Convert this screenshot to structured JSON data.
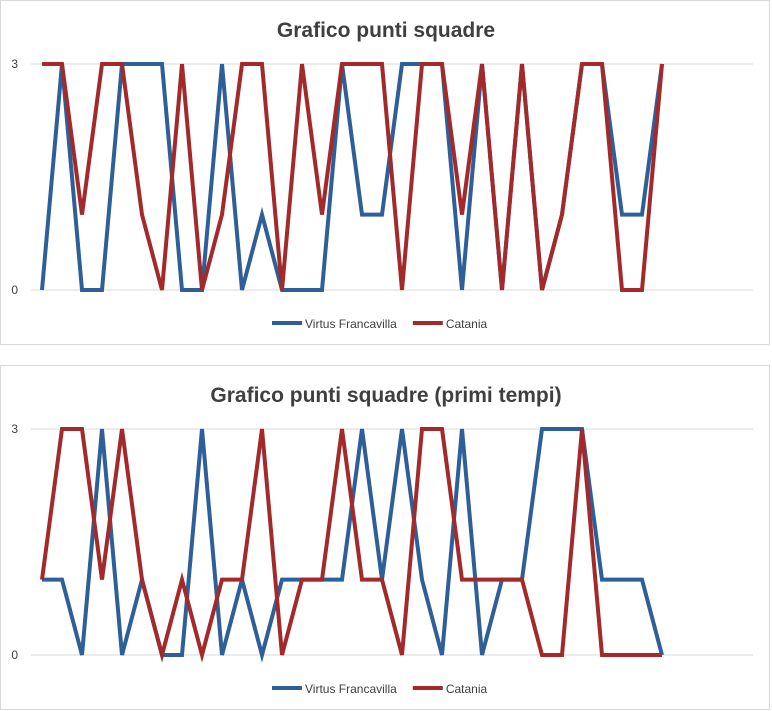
{
  "chart_data": [
    {
      "type": "line",
      "title": "Grafico punti squadre",
      "xlabel": "",
      "ylabel": "",
      "ylim": [
        0,
        3
      ],
      "y_ticks": [
        "0",
        "3"
      ],
      "grid": true,
      "legend_position": "bottom",
      "x": [
        1,
        2,
        3,
        4,
        5,
        6,
        7,
        8,
        9,
        10,
        11,
        12,
        13,
        14,
        15,
        16,
        17,
        18,
        19,
        20,
        21,
        22,
        23,
        24,
        25,
        26,
        27,
        28,
        29,
        30,
        31,
        32
      ],
      "series": [
        {
          "name": "Virtus Francavilla",
          "color": "#2e5f98",
          "values": [
            0,
            3,
            0,
            0,
            3,
            3,
            3,
            0,
            0,
            3,
            0,
            1,
            0,
            0,
            0,
            3,
            1,
            1,
            3,
            3,
            3,
            0,
            3,
            0,
            3,
            0,
            1,
            3,
            3,
            1,
            1,
            3
          ]
        },
        {
          "name": "Catania",
          "color": "#a32a2a",
          "values": [
            3,
            3,
            1,
            3,
            3,
            1,
            0,
            3,
            0,
            1,
            3,
            3,
            0,
            3,
            1,
            3,
            3,
            3,
            0,
            3,
            3,
            1,
            3,
            0,
            3,
            0,
            1,
            3,
            3,
            0,
            0,
            3
          ]
        }
      ]
    },
    {
      "type": "line",
      "title": "Grafico punti squadre (primi tempi)",
      "xlabel": "",
      "ylabel": "",
      "ylim": [
        0,
        3
      ],
      "y_ticks": [
        "0",
        "3"
      ],
      "grid": true,
      "legend_position": "bottom",
      "x": [
        1,
        2,
        3,
        4,
        5,
        6,
        7,
        8,
        9,
        10,
        11,
        12,
        13,
        14,
        15,
        16,
        17,
        18,
        19,
        20,
        21,
        22,
        23,
        24,
        25,
        26,
        27,
        28,
        29,
        30,
        31,
        32
      ],
      "series": [
        {
          "name": "Virtus Francavilla",
          "color": "#2e5f98",
          "values": [
            1,
            1,
            0,
            3,
            0,
            1,
            0,
            0,
            3,
            0,
            1,
            0,
            1,
            1,
            1,
            1,
            3,
            1,
            3,
            1,
            0,
            3,
            0,
            1,
            1,
            3,
            3,
            3,
            1,
            1,
            1,
            0
          ]
        },
        {
          "name": "Catania",
          "color": "#a32a2a",
          "values": [
            1,
            3,
            3,
            1,
            3,
            1,
            0,
            1,
            0,
            1,
            1,
            3,
            0,
            1,
            1,
            3,
            1,
            1,
            0,
            3,
            3,
            1,
            1,
            1,
            1,
            0,
            0,
            3,
            0,
            0,
            0,
            0
          ]
        }
      ]
    }
  ]
}
